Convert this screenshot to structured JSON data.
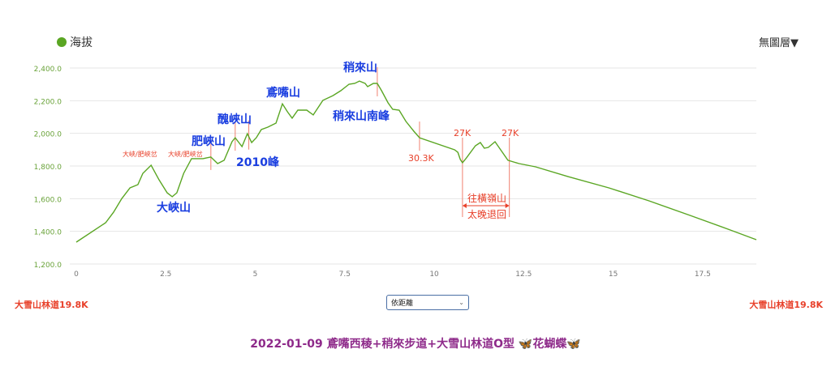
{
  "legend": {
    "label": "海拔",
    "color": "#5aa623"
  },
  "layer_menu": "無圖層▼",
  "chart_data": {
    "type": "line",
    "xlim": [
      0,
      19
    ],
    "ylim": [
      1200,
      2400
    ],
    "xticks": [
      0,
      2.5,
      5,
      7.5,
      10,
      12.5,
      15,
      17.5
    ],
    "xtick_labels": [
      "0",
      "2.5",
      "5",
      "7.5",
      "10",
      "12.5",
      "15",
      "17.5"
    ],
    "yticks": [
      1200,
      1400,
      1600,
      1800,
      2000,
      2200,
      2400
    ],
    "ytick_labels": [
      "1,200.0",
      "1,400.0",
      "1,600.0",
      "1,800.0",
      "2,000.0",
      "2,200.0",
      "2,400.0"
    ],
    "grid": true,
    "series": [
      {
        "name": "海拔",
        "color": "#5aa623",
        "x": [
          0,
          0.82,
          1.04,
          1.27,
          1.5,
          1.72,
          1.86,
          2.09,
          2.31,
          2.54,
          2.68,
          2.81,
          3.0,
          3.22,
          3.54,
          3.76,
          3.95,
          4.13,
          4.35,
          4.44,
          4.63,
          4.78,
          4.9,
          5.03,
          5.17,
          5.35,
          5.58,
          5.76,
          5.9,
          6.03,
          6.19,
          6.44,
          6.62,
          6.89,
          7.17,
          7.39,
          7.62,
          7.78,
          7.91,
          8.07,
          8.14,
          8.3,
          8.41,
          8.53,
          8.71,
          8.84,
          9.02,
          9.21,
          9.43,
          9.59,
          10.57,
          10.66,
          10.73,
          10.79,
          10.9,
          11.15,
          11.29,
          11.4,
          11.51,
          11.7,
          12.06,
          12.37,
          12.83,
          13.74,
          14.88,
          16.0,
          17.14,
          18.28,
          19.0
        ],
        "y": [
          1334,
          1453,
          1517,
          1600,
          1666,
          1686,
          1755,
          1805,
          1716,
          1636,
          1612,
          1636,
          1755,
          1845,
          1845,
          1855,
          1815,
          1835,
          1949,
          1973,
          1919,
          1998,
          1944,
          1973,
          2023,
          2038,
          2063,
          2181,
          2132,
          2093,
          2142,
          2142,
          2113,
          2202,
          2231,
          2261,
          2301,
          2306,
          2320,
          2306,
          2286,
          2306,
          2306,
          2261,
          2187,
          2147,
          2142,
          2073,
          2013,
          1973,
          1899,
          1884,
          1840,
          1820,
          1849,
          1924,
          1944,
          1909,
          1914,
          1949,
          1835,
          1815,
          1795,
          1735,
          1666,
          1587,
          1498,
          1408,
          1349
        ]
      }
    ],
    "marker_lines_km": [
      3.76,
      4.44,
      4.82,
      8.41,
      9.59,
      10.79,
      12.1
    ],
    "annotations": {
      "dahe": "大峽山",
      "feixia": "肥峽山",
      "chouxia": "醜峽山",
      "peak2010": "2010峰",
      "yuanzui": "鳶嘴山",
      "shaolai": "稍來山",
      "shaolai_s": "稍來山南峰",
      "k303": "30.3K",
      "k27a": "27K",
      "k27b": "27K",
      "saddle1": "大峽/肥峽岔",
      "saddle2": "大峽/肥峽岔",
      "heng": "往橫嶺山",
      "late": "太晚退回"
    }
  },
  "left_label": "大雪山林道19.8K",
  "right_label": "大雪山林道19.8K",
  "select": {
    "value": "依距離"
  },
  "title": {
    "text": "2022-01-09 鳶嘴西稜+稍來步道+大雪山林道O型 ",
    "butterfly_l": "🦋",
    "flower": "花蝴蝶",
    "butterfly_r": "🦋"
  }
}
